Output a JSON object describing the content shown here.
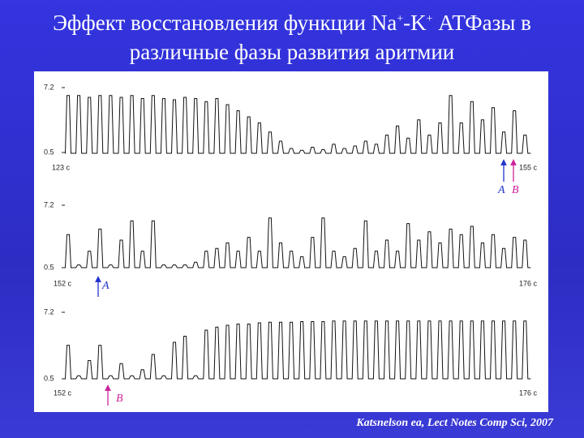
{
  "title": {
    "line1_parts": [
      "Эффект восстановления функции Na",
      "+",
      "-K",
      "+",
      " АТФазы в"
    ],
    "line2": "различные фазы развития аритмии"
  },
  "panels": [
    {
      "y_top_label": "7.2",
      "y_bottom_label": "0.5",
      "start_label": "123 c",
      "end_label": "155 c",
      "markers": [
        "A",
        "B"
      ]
    },
    {
      "y_top_label": "7.2",
      "y_bottom_label": "0.5",
      "start_label": "152 c",
      "end_label": "176 c",
      "markers": [
        "A"
      ]
    },
    {
      "y_top_label": "7.2",
      "y_bottom_label": "0.5",
      "start_label": "152 c",
      "end_label": "176 c",
      "markers": [
        "B"
      ]
    }
  ],
  "citation": "Katsnelson ea, Lect Notes Comp Sci, 2007"
}
